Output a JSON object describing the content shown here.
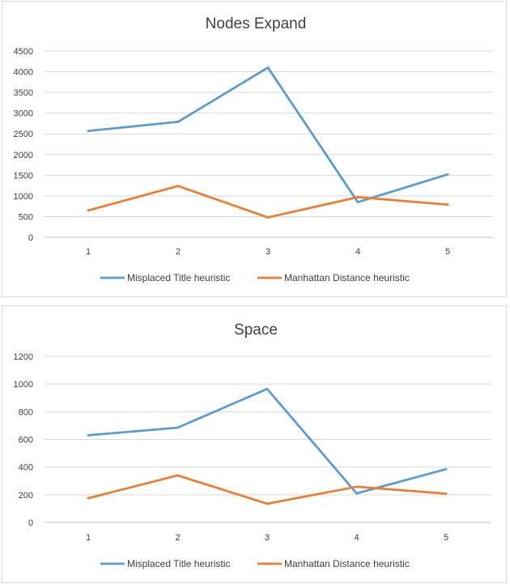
{
  "chart_data": [
    {
      "type": "line",
      "title": "Nodes Expand",
      "xlabel": "",
      "ylabel": "",
      "x": [
        "1",
        "2",
        "3",
        "4",
        "5"
      ],
      "yticks": [
        "0",
        "500",
        "1000",
        "1500",
        "2000",
        "2500",
        "3000",
        "3500",
        "4000",
        "4500"
      ],
      "ylim": [
        0,
        4500
      ],
      "grid": true,
      "legend": "bottom",
      "series": [
        {
          "name": "Misplaced Title heuristic",
          "color": "#5b9bd5",
          "values": [
            2570,
            2790,
            4100,
            850,
            1520
          ]
        },
        {
          "name": "Manhattan Distance heuristic",
          "color": "#ed7d31",
          "values": [
            650,
            1240,
            480,
            970,
            790
          ]
        }
      ]
    },
    {
      "type": "line",
      "title": "Space",
      "xlabel": "",
      "ylabel": "",
      "x": [
        "1",
        "2",
        "3",
        "4",
        "5"
      ],
      "yticks": [
        "0",
        "200",
        "400",
        "600",
        "800",
        "1000",
        "1200"
      ],
      "ylim": [
        0,
        1200
      ],
      "grid": true,
      "legend": "bottom",
      "series": [
        {
          "name": "Misplaced Title heuristic",
          "color": "#5b9bd5",
          "values": [
            630,
            685,
            965,
            210,
            385
          ]
        },
        {
          "name": "Manhattan Distance heuristic",
          "color": "#ed7d31",
          "values": [
            175,
            340,
            135,
            258,
            208
          ]
        }
      ]
    }
  ]
}
